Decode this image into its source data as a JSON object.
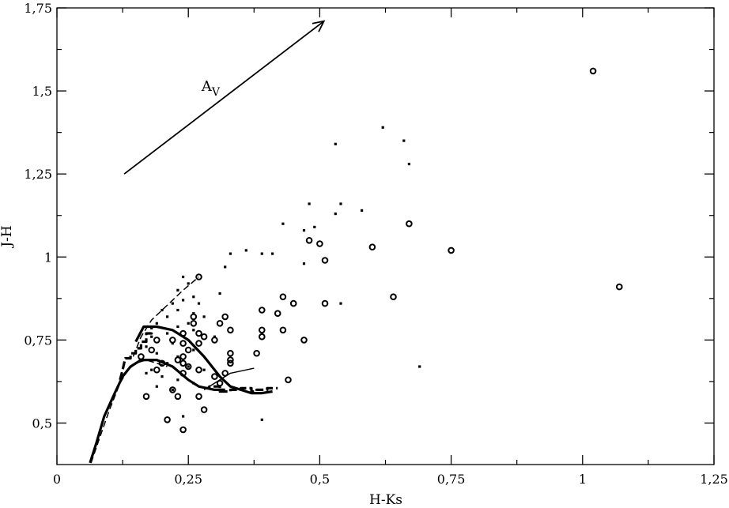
{
  "chart_data": {
    "type": "scatter",
    "title": "",
    "xlabel": "H-Ks",
    "ylabel": "J-H",
    "xlim": [
      0,
      1.25
    ],
    "ylim": [
      0.375,
      1.75
    ],
    "x_ticks": [
      {
        "value": 0,
        "label": "0"
      },
      {
        "value": 0.25,
        "label": "0,25"
      },
      {
        "value": 0.5,
        "label": "0,5"
      },
      {
        "value": 0.75,
        "label": "0,75"
      },
      {
        "value": 1,
        "label": "1"
      },
      {
        "value": 1.25,
        "label": "1,25"
      }
    ],
    "y_ticks": [
      {
        "value": 0.5,
        "label": "0,5"
      },
      {
        "value": 0.75,
        "label": "0,75"
      },
      {
        "value": 1,
        "label": "1"
      },
      {
        "value": 1.25,
        "label": "1,25"
      },
      {
        "value": 1.5,
        "label": "1,5"
      },
      {
        "value": 1.75,
        "label": "1,75"
      }
    ],
    "grid": false,
    "legend": "none",
    "annotation": {
      "text_main": "A",
      "text_sub": "V",
      "label_at": [
        0.275,
        1.5
      ],
      "arrow_from": [
        0.128,
        1.25
      ],
      "arrow_to": [
        0.508,
        1.71
      ]
    },
    "series": [
      {
        "marker": "open-circle",
        "points": [
          [
            1.02,
            1.56
          ],
          [
            1.07,
            0.91
          ],
          [
            0.75,
            1.02
          ],
          [
            0.67,
            1.1
          ],
          [
            0.64,
            0.88
          ],
          [
            0.6,
            1.03
          ],
          [
            0.51,
            0.99
          ],
          [
            0.51,
            0.86
          ],
          [
            0.5,
            1.04
          ],
          [
            0.48,
            1.05
          ],
          [
            0.47,
            0.75
          ],
          [
            0.45,
            0.86
          ],
          [
            0.44,
            0.63
          ],
          [
            0.43,
            0.88
          ],
          [
            0.43,
            0.78
          ],
          [
            0.42,
            0.83
          ],
          [
            0.39,
            0.84
          ],
          [
            0.39,
            0.78
          ],
          [
            0.39,
            0.76
          ],
          [
            0.38,
            0.71
          ],
          [
            0.33,
            0.78
          ],
          [
            0.33,
            0.71
          ],
          [
            0.33,
            0.69
          ],
          [
            0.33,
            0.68
          ],
          [
            0.32,
            0.82
          ],
          [
            0.32,
            0.65
          ],
          [
            0.31,
            0.8
          ],
          [
            0.31,
            0.62
          ],
          [
            0.3,
            0.75
          ],
          [
            0.3,
            0.64
          ],
          [
            0.28,
            0.76
          ],
          [
            0.28,
            0.54
          ],
          [
            0.27,
            0.94
          ],
          [
            0.27,
            0.77
          ],
          [
            0.27,
            0.74
          ],
          [
            0.27,
            0.66
          ],
          [
            0.27,
            0.58
          ],
          [
            0.26,
            0.82
          ],
          [
            0.26,
            0.8
          ],
          [
            0.25,
            0.72
          ],
          [
            0.25,
            0.67
          ],
          [
            0.24,
            0.77
          ],
          [
            0.24,
            0.74
          ],
          [
            0.24,
            0.7
          ],
          [
            0.24,
            0.68
          ],
          [
            0.24,
            0.65
          ],
          [
            0.24,
            0.48
          ],
          [
            0.23,
            0.69
          ],
          [
            0.23,
            0.58
          ],
          [
            0.22,
            0.75
          ],
          [
            0.22,
            0.6
          ],
          [
            0.21,
            0.51
          ],
          [
            0.2,
            0.68
          ],
          [
            0.19,
            0.75
          ],
          [
            0.19,
            0.66
          ],
          [
            0.18,
            0.72
          ],
          [
            0.17,
            0.58
          ],
          [
            0.16,
            0.7
          ]
        ]
      },
      {
        "marker": "dot",
        "points": [
          [
            0.62,
            1.39
          ],
          [
            0.66,
            1.35
          ],
          [
            0.53,
            1.34
          ],
          [
            0.67,
            1.28
          ],
          [
            0.48,
            1.16
          ],
          [
            0.54,
            1.16
          ],
          [
            0.58,
            1.14
          ],
          [
            0.53,
            1.13
          ],
          [
            0.43,
            1.1
          ],
          [
            0.49,
            1.09
          ],
          [
            0.47,
            1.08
          ],
          [
            0.36,
            1.02
          ],
          [
            0.33,
            1.01
          ],
          [
            0.39,
            1.01
          ],
          [
            0.41,
            1.01
          ],
          [
            0.47,
            0.98
          ],
          [
            0.32,
            0.97
          ],
          [
            0.24,
            0.94
          ],
          [
            0.25,
            0.92
          ],
          [
            0.23,
            0.9
          ],
          [
            0.31,
            0.89
          ],
          [
            0.26,
            0.88
          ],
          [
            0.24,
            0.87
          ],
          [
            0.22,
            0.86
          ],
          [
            0.27,
            0.86
          ],
          [
            0.54,
            0.86
          ],
          [
            0.2,
            0.84
          ],
          [
            0.23,
            0.84
          ],
          [
            0.26,
            0.83
          ],
          [
            0.21,
            0.82
          ],
          [
            0.28,
            0.82
          ],
          [
            0.19,
            0.8
          ],
          [
            0.25,
            0.8
          ],
          [
            0.23,
            0.79
          ],
          [
            0.26,
            0.78
          ],
          [
            0.21,
            0.77
          ],
          [
            0.18,
            0.76
          ],
          [
            0.3,
            0.76
          ],
          [
            0.22,
            0.74
          ],
          [
            0.17,
            0.73
          ],
          [
            0.26,
            0.72
          ],
          [
            0.19,
            0.71
          ],
          [
            0.23,
            0.7
          ],
          [
            0.16,
            0.69
          ],
          [
            0.21,
            0.68
          ],
          [
            0.25,
            0.67
          ],
          [
            0.18,
            0.66
          ],
          [
            0.28,
            0.66
          ],
          [
            0.2,
            0.64
          ],
          [
            0.23,
            0.63
          ],
          [
            0.26,
            0.62
          ],
          [
            0.19,
            0.61
          ],
          [
            0.22,
            0.6
          ],
          [
            0.24,
            0.52
          ],
          [
            0.39,
            0.51
          ],
          [
            0.69,
            0.67
          ],
          [
            0.17,
            0.65
          ]
        ]
      },
      {
        "marker": "line-solid-thick",
        "points": [
          [
            0.063,
            0.38
          ],
          [
            0.075,
            0.44
          ],
          [
            0.09,
            0.52
          ],
          [
            0.11,
            0.59
          ],
          [
            0.125,
            0.64
          ],
          [
            0.14,
            0.67
          ],
          [
            0.16,
            0.69
          ],
          [
            0.19,
            0.69
          ],
          [
            0.22,
            0.67
          ],
          [
            0.25,
            0.63
          ],
          [
            0.27,
            0.61
          ],
          [
            0.3,
            0.6
          ],
          [
            0.32,
            0.6
          ]
        ]
      },
      {
        "marker": "line-solid-thick",
        "points": [
          [
            0.15,
            0.745
          ],
          [
            0.165,
            0.79
          ],
          [
            0.19,
            0.79
          ],
          [
            0.22,
            0.78
          ],
          [
            0.25,
            0.75
          ],
          [
            0.28,
            0.7
          ],
          [
            0.31,
            0.64
          ],
          [
            0.33,
            0.61
          ],
          [
            0.35,
            0.6
          ],
          [
            0.37,
            0.59
          ],
          [
            0.39,
            0.59
          ],
          [
            0.41,
            0.595
          ]
        ]
      },
      {
        "marker": "line-solid-thin",
        "points": [
          [
            0.28,
            0.6
          ],
          [
            0.3,
            0.62
          ],
          [
            0.33,
            0.65
          ],
          [
            0.375,
            0.665
          ]
        ]
      },
      {
        "marker": "line-dashed",
        "points": [
          [
            0.065,
            0.38
          ],
          [
            0.08,
            0.45
          ],
          [
            0.1,
            0.54
          ],
          [
            0.12,
            0.62
          ],
          [
            0.135,
            0.66
          ],
          [
            0.15,
            0.68
          ],
          [
            0.17,
            0.69
          ],
          [
            0.19,
            0.68
          ],
          [
            0.21,
            0.67
          ]
        ]
      },
      {
        "marker": "line-dashed",
        "points": [
          [
            0.145,
            0.7
          ],
          [
            0.16,
            0.76
          ],
          [
            0.18,
            0.81
          ],
          [
            0.2,
            0.84
          ],
          [
            0.22,
            0.87
          ],
          [
            0.24,
            0.9
          ],
          [
            0.255,
            0.92
          ],
          [
            0.27,
            0.94
          ]
        ]
      },
      {
        "marker": "line-dashed-stepped",
        "points": [
          [
            0.12,
            0.63
          ],
          [
            0.125,
            0.66
          ],
          [
            0.13,
            0.695
          ],
          [
            0.14,
            0.695
          ],
          [
            0.14,
            0.71
          ],
          [
            0.15,
            0.71
          ],
          [
            0.15,
            0.725
          ],
          [
            0.16,
            0.725
          ],
          [
            0.16,
            0.745
          ],
          [
            0.17,
            0.745
          ],
          [
            0.17,
            0.77
          ],
          [
            0.18,
            0.77
          ],
          [
            0.18,
            0.79
          ]
        ]
      },
      {
        "marker": "line-dashed-stepped",
        "points": [
          [
            0.28,
            0.605
          ],
          [
            0.29,
            0.605
          ],
          [
            0.29,
            0.61
          ],
          [
            0.31,
            0.61
          ],
          [
            0.31,
            0.595
          ],
          [
            0.33,
            0.595
          ],
          [
            0.33,
            0.6
          ],
          [
            0.35,
            0.6
          ],
          [
            0.35,
            0.605
          ],
          [
            0.37,
            0.605
          ],
          [
            0.37,
            0.595
          ],
          [
            0.38,
            0.595
          ],
          [
            0.38,
            0.6
          ],
          [
            0.4,
            0.6
          ],
          [
            0.4,
            0.605
          ],
          [
            0.42,
            0.605
          ]
        ]
      }
    ]
  }
}
